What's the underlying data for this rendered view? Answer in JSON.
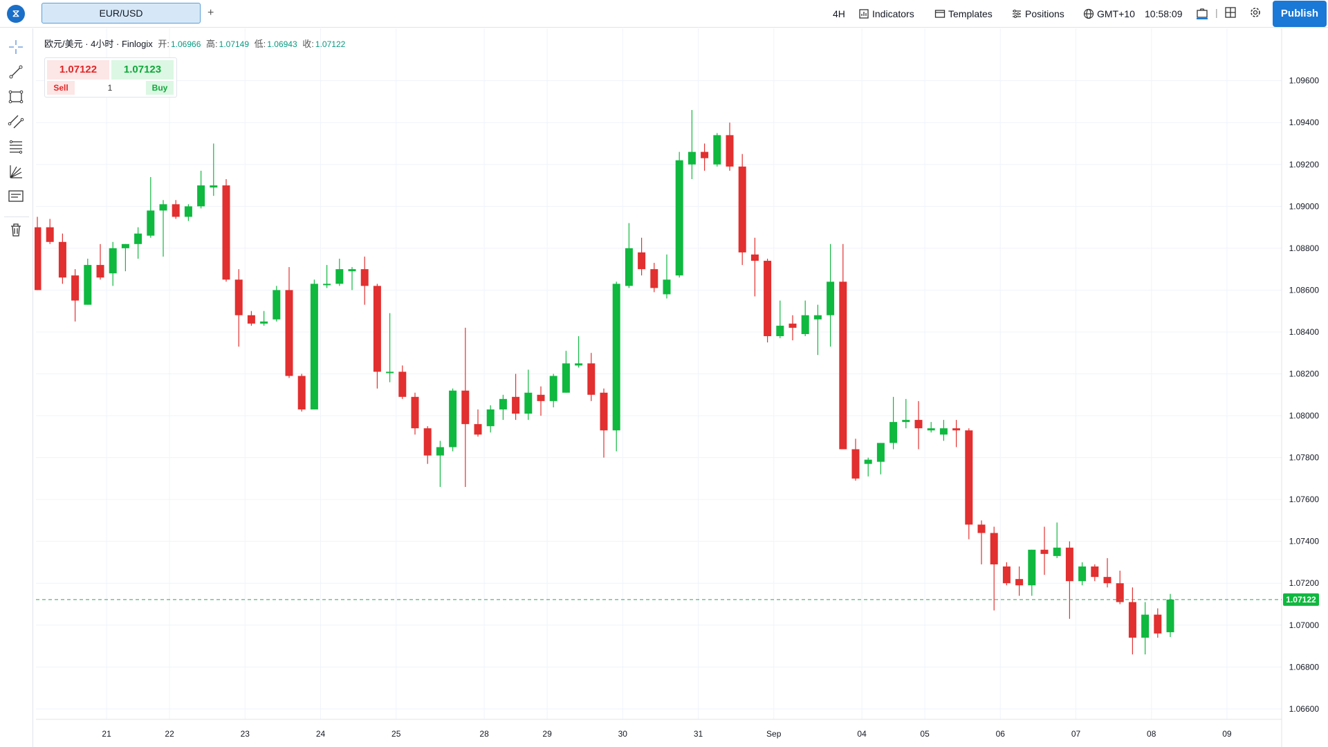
{
  "topbar": {
    "symbol_tab": "EUR/USD",
    "add_tab": "+",
    "interval": "4H",
    "indicators": "Indicators",
    "templates": "Templates",
    "positions": "Positions",
    "timezone": "GMT+10",
    "clock": "10:58:09",
    "publish": "Publish"
  },
  "legend": {
    "title": "欧元/美元 · 4小时 · Finlogix",
    "open_label": "开:",
    "open": "1.06966",
    "high_label": "高:",
    "high": "1.07149",
    "low_label": "低:",
    "low": "1.06943",
    "close_label": "收:",
    "close": "1.07122"
  },
  "trade": {
    "sell_price": "1.07122",
    "buy_price": "1.07123",
    "sell_label": "Sell",
    "buy_label": "Buy",
    "quantity": "1"
  },
  "colors": {
    "up": "#0fb83f",
    "down": "#e22f2f",
    "grid": "#f0f3fa",
    "accent": "#1a78d6",
    "price_line": "#26a65b"
  },
  "chart_data": {
    "type": "candlestick",
    "ylim": [
      1.0655,
      1.0985
    ],
    "y_ticks": [
      "1.09600",
      "1.09400",
      "1.09200",
      "1.09000",
      "1.08800",
      "1.08600",
      "1.08400",
      "1.08200",
      "1.08000",
      "1.07800",
      "1.07600",
      "1.07400",
      "1.07200",
      "1.07000",
      "1.06800",
      "1.06600"
    ],
    "x_ticks": [
      {
        "label": "21",
        "index": 5.5
      },
      {
        "label": "22",
        "index": 10.5
      },
      {
        "label": "23",
        "index": 16.5
      },
      {
        "label": "24",
        "index": 22.5
      },
      {
        "label": "25",
        "index": 28.5
      },
      {
        "label": "28",
        "index": 35.5
      },
      {
        "label": "29",
        "index": 40.5
      },
      {
        "label": "30",
        "index": 46.5
      },
      {
        "label": "31",
        "index": 52.5
      },
      {
        "label": "Sep",
        "index": 58.5
      },
      {
        "label": "04",
        "index": 65.5
      },
      {
        "label": "05",
        "index": 70.5
      },
      {
        "label": "06",
        "index": 76.5
      },
      {
        "label": "07",
        "index": 82.5
      },
      {
        "label": "08",
        "index": 88.5
      },
      {
        "label": "09",
        "index": 94.5
      }
    ],
    "last_price": 1.07122,
    "last_price_label": "1.07122",
    "candles": [
      [
        1.089,
        1.0895,
        1.086,
        1.086
      ],
      [
        1.089,
        1.0894,
        1.0882,
        1.0883
      ],
      [
        1.0883,
        1.0887,
        1.0863,
        1.0866
      ],
      [
        1.0867,
        1.087,
        1.0845,
        1.0855
      ],
      [
        1.0853,
        1.0875,
        1.0853,
        1.0872
      ],
      [
        1.0872,
        1.0882,
        1.0865,
        1.0866
      ],
      [
        1.0868,
        1.0883,
        1.0862,
        1.088
      ],
      [
        1.088,
        1.0882,
        1.0869,
        1.0882
      ],
      [
        1.0882,
        1.089,
        1.0875,
        1.0887
      ],
      [
        1.0886,
        1.0914,
        1.0885,
        1.0898
      ],
      [
        1.0898,
        1.0903,
        1.0876,
        1.0901
      ],
      [
        1.0901,
        1.0903,
        1.0894,
        1.0895
      ],
      [
        1.0895,
        1.0901,
        1.0893,
        1.09
      ],
      [
        1.09,
        1.0917,
        1.0899,
        1.091
      ],
      [
        1.0909,
        1.093,
        1.0905,
        1.091
      ],
      [
        1.091,
        1.0913,
        1.0864,
        1.0865
      ],
      [
        1.0865,
        1.087,
        1.0833,
        1.0848
      ],
      [
        1.0848,
        1.085,
        1.0843,
        1.0844
      ],
      [
        1.0844,
        1.085,
        1.0843,
        1.0845
      ],
      [
        1.0846,
        1.0862,
        1.0845,
        1.086
      ],
      [
        1.086,
        1.0871,
        1.0818,
        1.0819
      ],
      [
        1.0819,
        1.082,
        1.0802,
        1.0803
      ],
      [
        1.0803,
        1.0865,
        1.0803,
        1.0863
      ],
      [
        1.0863,
        1.0872,
        1.0861,
        1.0863
      ],
      [
        1.0863,
        1.0875,
        1.0862,
        1.087
      ],
      [
        1.0869,
        1.0871,
        1.086,
        1.087
      ],
      [
        1.087,
        1.0876,
        1.0853,
        1.0862
      ],
      [
        1.0862,
        1.0863,
        1.0813,
        1.0821
      ],
      [
        1.0821,
        1.0849,
        1.0816,
        1.0821
      ],
      [
        1.0821,
        1.0824,
        1.0808,
        1.0809
      ],
      [
        1.0809,
        1.0811,
        1.0791,
        1.0794
      ],
      [
        1.0794,
        1.0795,
        1.0777,
        1.0781
      ],
      [
        1.0781,
        1.0788,
        1.0766,
        1.0785
      ],
      [
        1.0785,
        1.0813,
        1.0783,
        1.0812
      ],
      [
        1.0812,
        1.0842,
        1.0766,
        1.0796
      ],
      [
        1.0796,
        1.0803,
        1.079,
        1.0791
      ],
      [
        1.0795,
        1.0805,
        1.0792,
        1.0803
      ],
      [
        1.0803,
        1.081,
        1.0798,
        1.0808
      ],
      [
        1.0809,
        1.082,
        1.0798,
        1.0801
      ],
      [
        1.0801,
        1.0822,
        1.0798,
        1.0811
      ],
      [
        1.081,
        1.0814,
        1.08,
        1.0807
      ],
      [
        1.0807,
        1.082,
        1.0804,
        1.0819
      ],
      [
        1.0811,
        1.0831,
        1.0811,
        1.0825
      ],
      [
        1.0824,
        1.0838,
        1.0823,
        1.0825
      ],
      [
        1.0825,
        1.083,
        1.0807,
        1.081
      ],
      [
        1.0811,
        1.0813,
        1.078,
        1.0793
      ],
      [
        1.0793,
        1.0864,
        1.0783,
        1.0863
      ],
      [
        1.0862,
        1.0892,
        1.0861,
        1.088
      ],
      [
        1.0878,
        1.0885,
        1.0867,
        1.087
      ],
      [
        1.087,
        1.0873,
        1.0859,
        1.0861
      ],
      [
        1.0858,
        1.0877,
        1.0856,
        1.0865
      ],
      [
        1.0867,
        1.0926,
        1.0866,
        1.0922
      ],
      [
        1.092,
        1.0946,
        1.0913,
        1.0926
      ],
      [
        1.0926,
        1.093,
        1.0917,
        1.0923
      ],
      [
        1.092,
        1.0935,
        1.0919,
        1.0934
      ],
      [
        1.0934,
        1.094,
        1.0917,
        1.0919
      ],
      [
        1.0919,
        1.0925,
        1.0872,
        1.0878
      ],
      [
        1.0877,
        1.0885,
        1.0857,
        1.0874
      ],
      [
        1.0874,
        1.0875,
        1.0835,
        1.0838
      ],
      [
        1.0838,
        1.0855,
        1.0837,
        1.0843
      ],
      [
        1.0844,
        1.0848,
        1.0836,
        1.0842
      ],
      [
        1.0839,
        1.0855,
        1.0838,
        1.0848
      ],
      [
        1.0846,
        1.0853,
        1.0829,
        1.0848
      ],
      [
        1.0848,
        1.0882,
        1.0833,
        1.0864
      ],
      [
        1.0864,
        1.0882,
        1.0784,
        1.0784
      ],
      [
        1.0784,
        1.0789,
        1.0769,
        1.077
      ],
      [
        1.0777,
        1.078,
        1.0771,
        1.0779
      ],
      [
        1.0778,
        1.0787,
        1.0772,
        1.0787
      ],
      [
        1.0787,
        1.0809,
        1.0784,
        1.0797
      ],
      [
        1.0797,
        1.0808,
        1.0794,
        1.0798
      ],
      [
        1.0798,
        1.0807,
        1.0784,
        1.0794
      ],
      [
        1.0793,
        1.0797,
        1.0792,
        1.0794
      ],
      [
        1.0791,
        1.0798,
        1.0788,
        1.0794
      ],
      [
        1.0794,
        1.0798,
        1.0785,
        1.0793
      ],
      [
        1.0793,
        1.0794,
        1.0741,
        1.0748
      ],
      [
        1.0748,
        1.075,
        1.0729,
        1.0744
      ],
      [
        1.0744,
        1.0747,
        1.0707,
        1.0729
      ],
      [
        1.0728,
        1.073,
        1.0719,
        1.072
      ],
      [
        1.0722,
        1.0728,
        1.0714,
        1.0719
      ],
      [
        1.0719,
        1.0736,
        1.0714,
        1.0736
      ],
      [
        1.0736,
        1.0747,
        1.0724,
        1.0734
      ],
      [
        1.0733,
        1.0749,
        1.0732,
        1.0737
      ],
      [
        1.0737,
        1.074,
        1.0703,
        1.0721
      ],
      [
        1.0721,
        1.073,
        1.0719,
        1.0728
      ],
      [
        1.0728,
        1.0729,
        1.0721,
        1.0723
      ],
      [
        1.0723,
        1.0732,
        1.0718,
        1.072
      ],
      [
        1.072,
        1.0726,
        1.071,
        1.0711
      ],
      [
        1.0711,
        1.0718,
        1.0686,
        1.0694
      ],
      [
        1.0694,
        1.0711,
        1.0686,
        1.0705
      ],
      [
        1.0705,
        1.0708,
        1.0694,
        1.0696
      ],
      [
        1.06966,
        1.07149,
        1.06943,
        1.07122
      ]
    ]
  }
}
